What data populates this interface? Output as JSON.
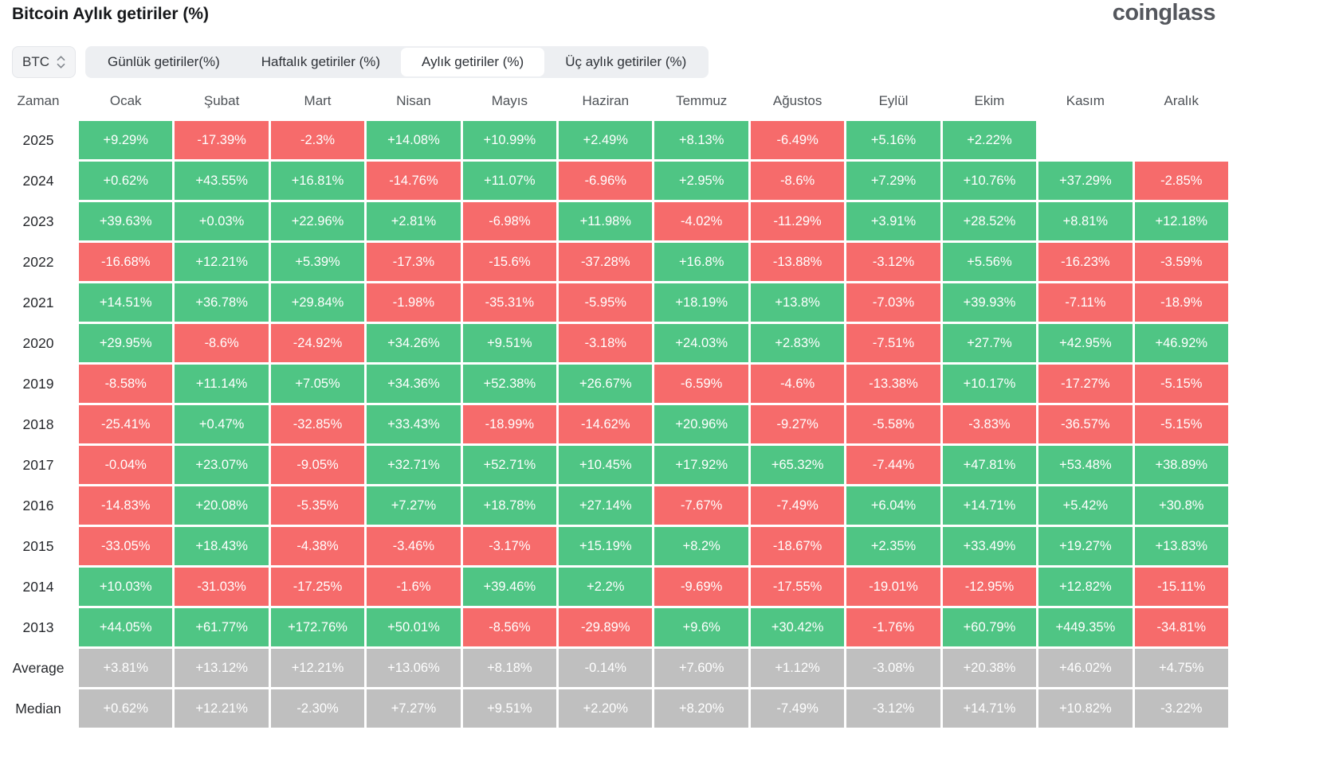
{
  "header": {
    "title": "Bitcoin Aylık getiriler (%)",
    "logo": "coinglass"
  },
  "controls": {
    "coin_select": {
      "value": "BTC"
    },
    "tabs": [
      {
        "label": "Günlük getiriler(%)",
        "active": false
      },
      {
        "label": "Haftalık getiriler (%)",
        "active": false
      },
      {
        "label": "Aylık getiriler (%)",
        "active": true
      },
      {
        "label": "Üç aylık getiriler (%)",
        "active": false
      }
    ]
  },
  "colors": {
    "positive": "#4FC584",
    "negative": "#F66B6B",
    "summary": "#BFBFBF"
  },
  "table": {
    "time_header": "Zaman",
    "columns": [
      "Ocak",
      "Şubat",
      "Mart",
      "Nisan",
      "Mayıs",
      "Haziran",
      "Temmuz",
      "Ağustos",
      "Eylül",
      "Ekim",
      "Kasım",
      "Aralık"
    ],
    "rows": [
      {
        "label": "2025",
        "type": "year",
        "cells": [
          "+9.29%",
          "-17.39%",
          "-2.3%",
          "+14.08%",
          "+10.99%",
          "+2.49%",
          "+8.13%",
          "-6.49%",
          "+5.16%",
          "+2.22%",
          "",
          ""
        ]
      },
      {
        "label": "2024",
        "type": "year",
        "cells": [
          "+0.62%",
          "+43.55%",
          "+16.81%",
          "-14.76%",
          "+11.07%",
          "-6.96%",
          "+2.95%",
          "-8.6%",
          "+7.29%",
          "+10.76%",
          "+37.29%",
          "-2.85%"
        ]
      },
      {
        "label": "2023",
        "type": "year",
        "cells": [
          "+39.63%",
          "+0.03%",
          "+22.96%",
          "+2.81%",
          "-6.98%",
          "+11.98%",
          "-4.02%",
          "-11.29%",
          "+3.91%",
          "+28.52%",
          "+8.81%",
          "+12.18%"
        ]
      },
      {
        "label": "2022",
        "type": "year",
        "cells": [
          "-16.68%",
          "+12.21%",
          "+5.39%",
          "-17.3%",
          "-15.6%",
          "-37.28%",
          "+16.8%",
          "-13.88%",
          "-3.12%",
          "+5.56%",
          "-16.23%",
          "-3.59%"
        ]
      },
      {
        "label": "2021",
        "type": "year",
        "cells": [
          "+14.51%",
          "+36.78%",
          "+29.84%",
          "-1.98%",
          "-35.31%",
          "-5.95%",
          "+18.19%",
          "+13.8%",
          "-7.03%",
          "+39.93%",
          "-7.11%",
          "-18.9%"
        ]
      },
      {
        "label": "2020",
        "type": "year",
        "cells": [
          "+29.95%",
          "-8.6%",
          "-24.92%",
          "+34.26%",
          "+9.51%",
          "-3.18%",
          "+24.03%",
          "+2.83%",
          "-7.51%",
          "+27.7%",
          "+42.95%",
          "+46.92%"
        ]
      },
      {
        "label": "2019",
        "type": "year",
        "cells": [
          "-8.58%",
          "+11.14%",
          "+7.05%",
          "+34.36%",
          "+52.38%",
          "+26.67%",
          "-6.59%",
          "-4.6%",
          "-13.38%",
          "+10.17%",
          "-17.27%",
          "-5.15%"
        ]
      },
      {
        "label": "2018",
        "type": "year",
        "cells": [
          "-25.41%",
          "+0.47%",
          "-32.85%",
          "+33.43%",
          "-18.99%",
          "-14.62%",
          "+20.96%",
          "-9.27%",
          "-5.58%",
          "-3.83%",
          "-36.57%",
          "-5.15%"
        ]
      },
      {
        "label": "2017",
        "type": "year",
        "cells": [
          "-0.04%",
          "+23.07%",
          "-9.05%",
          "+32.71%",
          "+52.71%",
          "+10.45%",
          "+17.92%",
          "+65.32%",
          "-7.44%",
          "+47.81%",
          "+53.48%",
          "+38.89%"
        ]
      },
      {
        "label": "2016",
        "type": "year",
        "cells": [
          "-14.83%",
          "+20.08%",
          "-5.35%",
          "+7.27%",
          "+18.78%",
          "+27.14%",
          "-7.67%",
          "-7.49%",
          "+6.04%",
          "+14.71%",
          "+5.42%",
          "+30.8%"
        ]
      },
      {
        "label": "2015",
        "type": "year",
        "cells": [
          "-33.05%",
          "+18.43%",
          "-4.38%",
          "-3.46%",
          "-3.17%",
          "+15.19%",
          "+8.2%",
          "-18.67%",
          "+2.35%",
          "+33.49%",
          "+19.27%",
          "+13.83%"
        ]
      },
      {
        "label": "2014",
        "type": "year",
        "cells": [
          "+10.03%",
          "-31.03%",
          "-17.25%",
          "-1.6%",
          "+39.46%",
          "+2.2%",
          "-9.69%",
          "-17.55%",
          "-19.01%",
          "-12.95%",
          "+12.82%",
          "-15.11%"
        ]
      },
      {
        "label": "2013",
        "type": "year",
        "cells": [
          "+44.05%",
          "+61.77%",
          "+172.76%",
          "+50.01%",
          "-8.56%",
          "-29.89%",
          "+9.6%",
          "+30.42%",
          "-1.76%",
          "+60.79%",
          "+449.35%",
          "-34.81%"
        ]
      },
      {
        "label": "Average",
        "type": "summary",
        "cells": [
          "+3.81%",
          "+13.12%",
          "+12.21%",
          "+13.06%",
          "+8.18%",
          "-0.14%",
          "+7.60%",
          "+1.12%",
          "-3.08%",
          "+20.38%",
          "+46.02%",
          "+4.75%"
        ]
      },
      {
        "label": "Median",
        "type": "summary",
        "cells": [
          "+0.62%",
          "+12.21%",
          "-2.30%",
          "+7.27%",
          "+9.51%",
          "+2.20%",
          "+8.20%",
          "-7.49%",
          "-3.12%",
          "+14.71%",
          "+10.82%",
          "-3.22%"
        ]
      }
    ]
  },
  "chart_data": {
    "type": "heatmap",
    "title": "Bitcoin Aylık getiriler (%)",
    "unit": "%",
    "categories": [
      "Ocak",
      "Şubat",
      "Mart",
      "Nisan",
      "Mayıs",
      "Haziran",
      "Temmuz",
      "Ağustos",
      "Eylül",
      "Ekim",
      "Kasım",
      "Aralık"
    ],
    "series": [
      {
        "name": "2025",
        "values": [
          9.29,
          -17.39,
          -2.3,
          14.08,
          10.99,
          2.49,
          8.13,
          -6.49,
          5.16,
          2.22,
          null,
          null
        ]
      },
      {
        "name": "2024",
        "values": [
          0.62,
          43.55,
          16.81,
          -14.76,
          11.07,
          -6.96,
          2.95,
          -8.6,
          7.29,
          10.76,
          37.29,
          -2.85
        ]
      },
      {
        "name": "2023",
        "values": [
          39.63,
          0.03,
          22.96,
          2.81,
          -6.98,
          11.98,
          -4.02,
          -11.29,
          3.91,
          28.52,
          8.81,
          12.18
        ]
      },
      {
        "name": "2022",
        "values": [
          -16.68,
          12.21,
          5.39,
          -17.3,
          -15.6,
          -37.28,
          16.8,
          -13.88,
          -3.12,
          5.56,
          -16.23,
          -3.59
        ]
      },
      {
        "name": "2021",
        "values": [
          14.51,
          36.78,
          29.84,
          -1.98,
          -35.31,
          -5.95,
          18.19,
          13.8,
          -7.03,
          39.93,
          -7.11,
          -18.9
        ]
      },
      {
        "name": "2020",
        "values": [
          29.95,
          -8.6,
          -24.92,
          34.26,
          9.51,
          -3.18,
          24.03,
          2.83,
          -7.51,
          27.7,
          42.95,
          46.92
        ]
      },
      {
        "name": "2019",
        "values": [
          -8.58,
          11.14,
          7.05,
          34.36,
          52.38,
          26.67,
          -6.59,
          -4.6,
          -13.38,
          10.17,
          -17.27,
          -5.15
        ]
      },
      {
        "name": "2018",
        "values": [
          -25.41,
          0.47,
          -32.85,
          33.43,
          -18.99,
          -14.62,
          20.96,
          -9.27,
          -5.58,
          -3.83,
          -36.57,
          -5.15
        ]
      },
      {
        "name": "2017",
        "values": [
          -0.04,
          23.07,
          -9.05,
          32.71,
          52.71,
          10.45,
          17.92,
          65.32,
          -7.44,
          47.81,
          53.48,
          38.89
        ]
      },
      {
        "name": "2016",
        "values": [
          -14.83,
          20.08,
          -5.35,
          7.27,
          18.78,
          27.14,
          -7.67,
          -7.49,
          6.04,
          14.71,
          5.42,
          30.8
        ]
      },
      {
        "name": "2015",
        "values": [
          -33.05,
          18.43,
          -4.38,
          -3.46,
          -3.17,
          15.19,
          8.2,
          -18.67,
          2.35,
          33.49,
          19.27,
          13.83
        ]
      },
      {
        "name": "2014",
        "values": [
          10.03,
          -31.03,
          -17.25,
          -1.6,
          39.46,
          2.2,
          -9.69,
          -17.55,
          -19.01,
          -12.95,
          12.82,
          -15.11
        ]
      },
      {
        "name": "2013",
        "values": [
          44.05,
          61.77,
          172.76,
          50.01,
          -8.56,
          -29.89,
          9.6,
          30.42,
          -1.76,
          60.79,
          449.35,
          -34.81
        ]
      },
      {
        "name": "Average",
        "values": [
          3.81,
          13.12,
          12.21,
          13.06,
          8.18,
          -0.14,
          7.6,
          1.12,
          -3.08,
          20.38,
          46.02,
          4.75
        ]
      },
      {
        "name": "Median",
        "values": [
          0.62,
          12.21,
          -2.3,
          7.27,
          9.51,
          2.2,
          8.2,
          -7.49,
          -3.12,
          14.71,
          10.82,
          -3.22
        ]
      }
    ],
    "legend_position": "none",
    "grid": false,
    "color_rule": "positive=green, negative=red, Average/Median rows=gray"
  }
}
